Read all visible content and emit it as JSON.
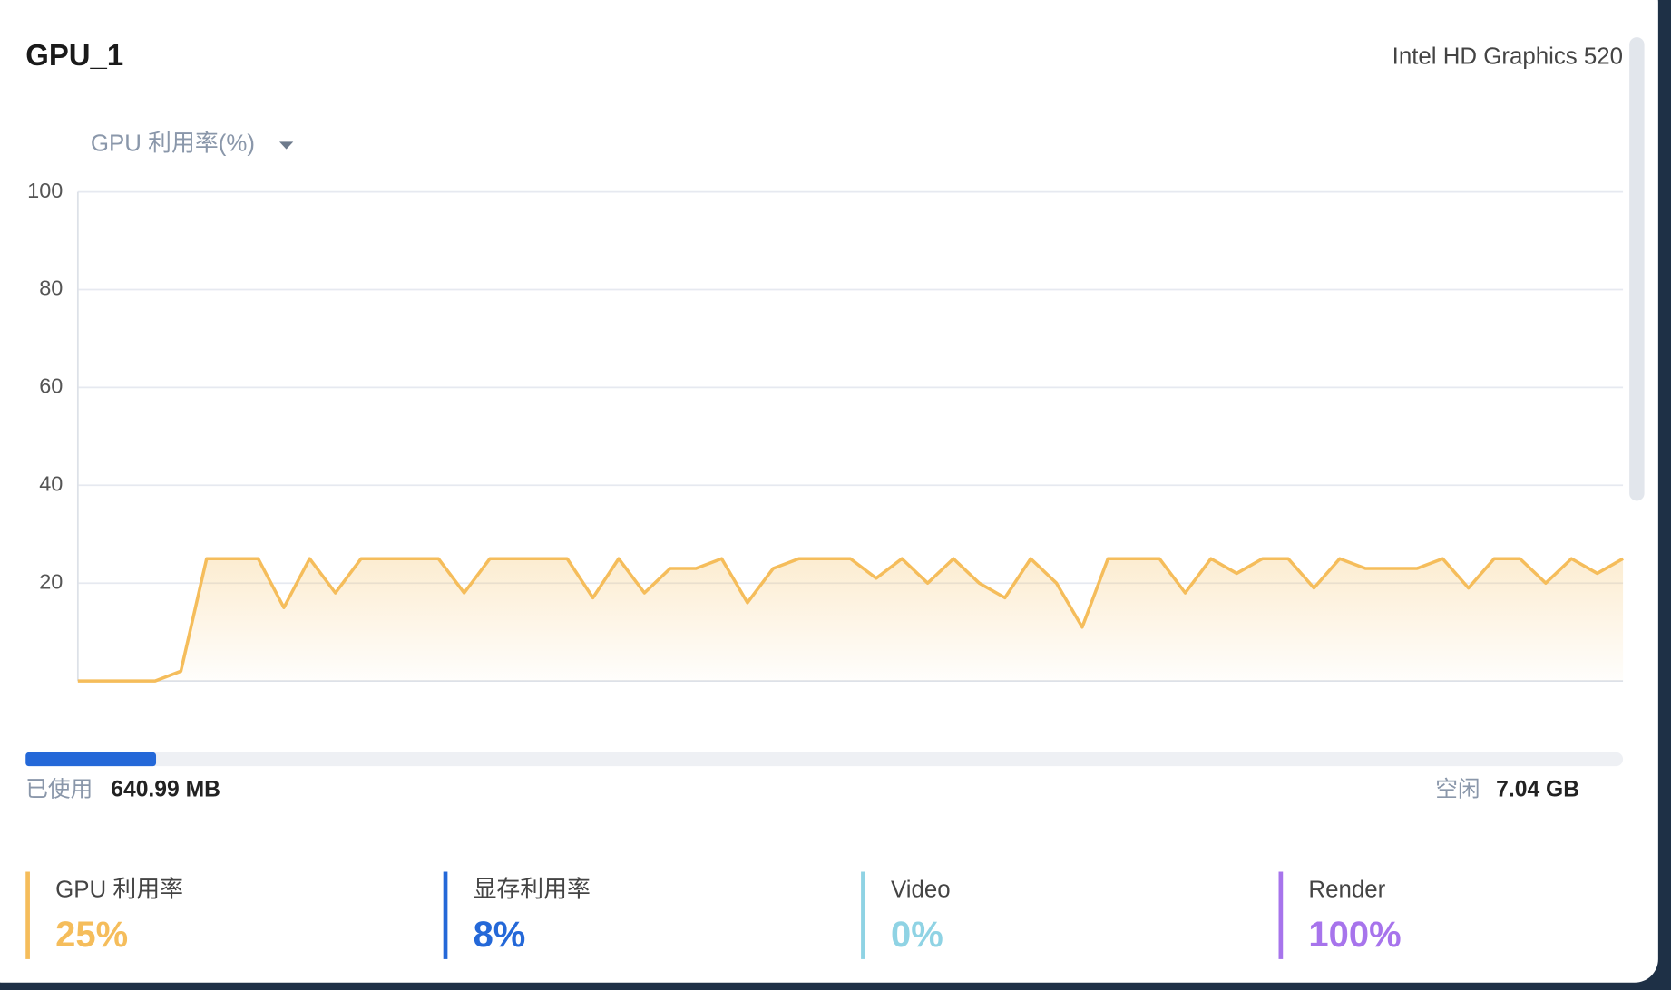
{
  "header": {
    "title": "GPU_1",
    "subtitle": "Intel HD Graphics 520"
  },
  "chart_data": {
    "type": "line",
    "selector": "GPU 利用率(%)",
    "color": "#f5bd5b",
    "values": [
      0,
      0,
      0,
      0,
      2,
      25,
      25,
      25,
      15,
      25,
      18,
      25,
      25,
      25,
      25,
      18,
      25,
      25,
      25,
      25,
      17,
      25,
      18,
      23,
      23,
      25,
      16,
      23,
      25,
      25,
      25,
      21,
      25,
      20,
      25,
      20,
      17,
      25,
      20,
      11,
      25,
      25,
      25,
      18,
      25,
      22,
      25,
      25,
      19,
      25,
      23,
      23,
      23,
      25,
      19,
      25,
      25,
      20,
      25,
      22,
      25
    ],
    "ylim": [
      0,
      100
    ],
    "yticks": [
      20,
      40,
      60,
      80,
      100
    ],
    "grid": true
  },
  "memory": {
    "used_label": "已使用",
    "used": {
      "value": 640.99,
      "label": "640.99 MB"
    },
    "free_label": "空闲",
    "free": {
      "value": 7.04,
      "label": "7.04 GB"
    },
    "color": "#2468d8"
  },
  "stats": [
    {
      "label": "GPU 利用率",
      "value": "25%",
      "color": "#f5bd5b"
    },
    {
      "label": "显存利用率",
      "value": "8%",
      "color": "#2468d8"
    },
    {
      "label": "Video",
      "value": "0%",
      "color": "#8fd3e4"
    },
    {
      "label": "Render",
      "value": "100%",
      "color": "#a774ec"
    }
  ]
}
